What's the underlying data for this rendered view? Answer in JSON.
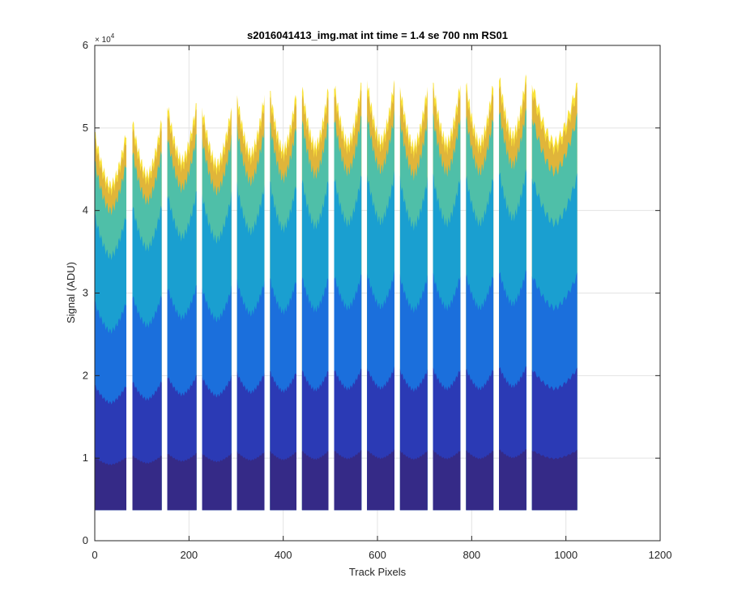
{
  "chart_data": {
    "type": "area",
    "title": "s2016041413_img.mat int time = 1.4 se  700 nm RS01",
    "xlabel": "Track Pixels",
    "ylabel": "Signal (ADU)",
    "xlim": [
      0,
      1200
    ],
    "ylim": [
      0,
      60000
    ],
    "xticks": [
      "0",
      "200",
      "400",
      "600",
      "800",
      "1000",
      "1200"
    ],
    "yticks": [
      "0",
      "1",
      "2",
      "3",
      "4",
      "5",
      "6"
    ],
    "y_exponent": "× 10",
    "y_exponent_power": "4",
    "grid": true,
    "baseline": 3700,
    "x_extent": [
      0,
      1024
    ],
    "segments": [
      {
        "x0": 0,
        "x1": 67,
        "peak": 49500
      },
      {
        "x0": 80,
        "x1": 142,
        "peak": 51000
      },
      {
        "x0": 154,
        "x1": 216,
        "peak": 53000
      },
      {
        "x0": 228,
        "x1": 290,
        "peak": 52500
      },
      {
        "x0": 302,
        "x1": 360,
        "peak": 54000
      },
      {
        "x0": 372,
        "x1": 428,
        "peak": 54500
      },
      {
        "x0": 440,
        "x1": 496,
        "peak": 55000
      },
      {
        "x0": 508,
        "x1": 566,
        "peak": 55500
      },
      {
        "x0": 578,
        "x1": 636,
        "peak": 55800
      },
      {
        "x0": 648,
        "x1": 706,
        "peak": 55000
      },
      {
        "x0": 718,
        "x1": 776,
        "peak": 55500
      },
      {
        "x0": 788,
        "x1": 846,
        "peak": 55500
      },
      {
        "x0": 858,
        "x1": 916,
        "peak": 56500
      },
      {
        "x0": 928,
        "x1": 1024,
        "peak": 55500
      }
    ],
    "layers": [
      {
        "level": 0.14,
        "color": "#352a87"
      },
      {
        "level": 0.33,
        "color": "#2b3ab5"
      },
      {
        "level": 0.55,
        "color": "#1b6fdc"
      },
      {
        "level": 0.78,
        "color": "#1a9fd0"
      },
      {
        "level": 0.92,
        "color": "#4fbfa8"
      },
      {
        "level": 0.98,
        "color": "#e0b53a"
      },
      {
        "level": 1.0,
        "color": "#f9e23a"
      }
    ]
  }
}
